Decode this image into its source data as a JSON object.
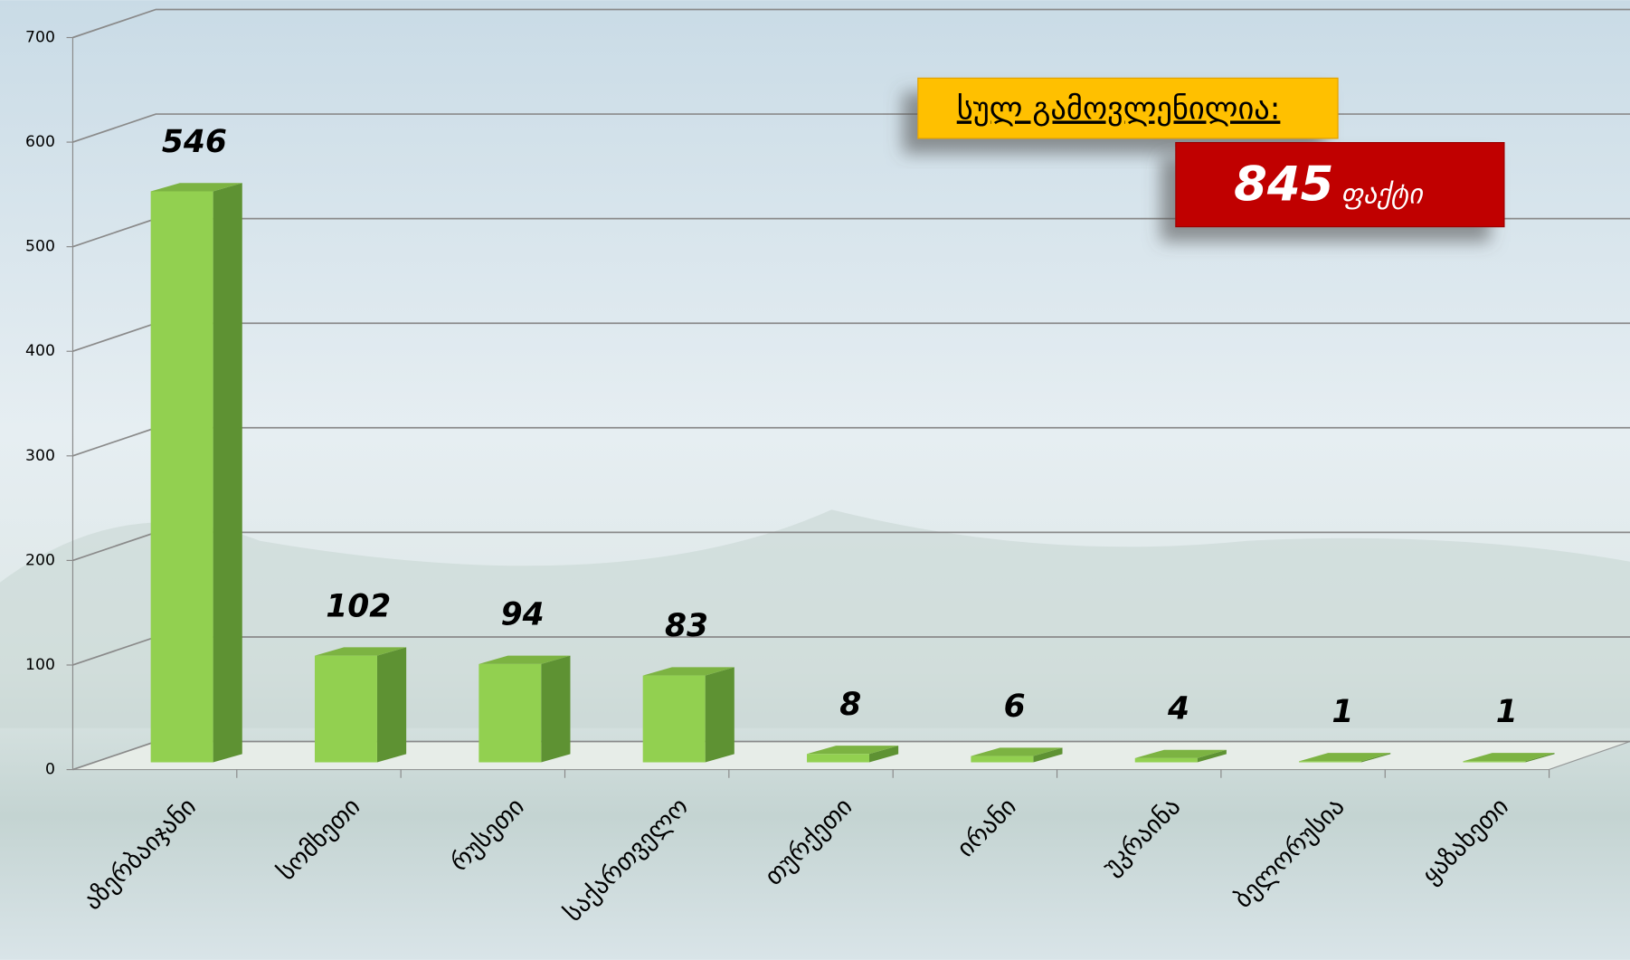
{
  "chart_data": {
    "type": "bar3d",
    "categories": [
      "აზერბაიჯანი",
      "სომხეთი",
      "რუსეთი",
      "საქართველო",
      "თურქეთი",
      "ირანი",
      "უკრაინა",
      "ბელორუსია",
      "ყაზახეთი"
    ],
    "values": [
      546,
      102,
      94,
      83,
      8,
      6,
      4,
      1,
      1
    ],
    "color": "#92d050",
    "ylim": [
      0,
      700
    ],
    "yticks": [
      0,
      100,
      200,
      300,
      400,
      500,
      600,
      700
    ],
    "grid": true,
    "annotations": {
      "total_label": "სულ გამოვლენილია:",
      "total_value": "845",
      "total_unit": "ფაქტი"
    }
  }
}
